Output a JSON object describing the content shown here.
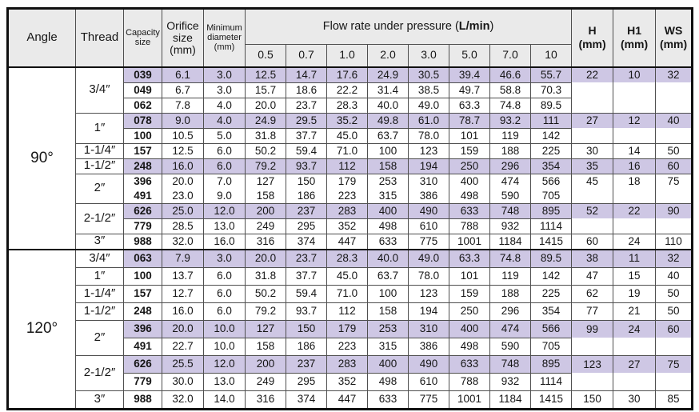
{
  "header": {
    "angle": "Angle",
    "thread": "Thread",
    "capacity": [
      "Capacity",
      "size"
    ],
    "orifice": [
      "Orifice",
      "size",
      "(mm)"
    ],
    "minimum": [
      "Minimum",
      "diameter",
      "(mm)"
    ],
    "flow_title_prefix": "Flow rate under pressure (",
    "flow_title_bold": "L/min",
    "flow_title_suffix": ")",
    "pressures": [
      "0.5",
      "0.7",
      "1.0",
      "2.0",
      "3.0",
      "5.0",
      "7.0",
      "10"
    ],
    "h": [
      "H",
      "(mm)"
    ],
    "h1": [
      "H1",
      "(mm)"
    ],
    "ws": [
      "WS",
      "(mm)"
    ]
  },
  "colors": {
    "highlight_row": "#cec7e4",
    "header_bg": "#eaeaea",
    "grid_line": "#4f4f4f",
    "frame_line": "#101010"
  },
  "sections": [
    {
      "angle": "90°",
      "groups": [
        {
          "thread": "3/4″",
          "rows": [
            {
              "capacity": "039",
              "orifice": "6.1",
              "min_dia": "3.0",
              "flow": [
                "12.5",
                "14.7",
                "17.6",
                "24.9",
                "30.5",
                "39.4",
                "46.6",
                "55.7"
              ],
              "h": "22",
              "h1": "10",
              "ws": "32",
              "highlight": true
            },
            {
              "capacity": "049",
              "orifice": "6.7",
              "min_dia": "3.0",
              "flow": [
                "15.7",
                "18.6",
                "22.2",
                "31.4",
                "38.5",
                "49.7",
                "58.8",
                "70.3"
              ],
              "h": "",
              "h1": "",
              "ws": ""
            },
            {
              "capacity": "062",
              "orifice": "7.8",
              "min_dia": "4.0",
              "flow": [
                "20.0",
                "23.7",
                "28.3",
                "40.0",
                "49.0",
                "63.3",
                "74.8",
                "89.5"
              ],
              "h": "",
              "h1": "",
              "ws": ""
            }
          ]
        },
        {
          "thread": "1″",
          "rows": [
            {
              "capacity": "078",
              "orifice": "9.0",
              "min_dia": "4.0",
              "flow": [
                "24.9",
                "29.5",
                "35.2",
                "49.8",
                "61.0",
                "78.7",
                "93.2",
                "111"
              ],
              "h": "27",
              "h1": "12",
              "ws": "40",
              "highlight": true
            },
            {
              "capacity": "100",
              "orifice": "10.5",
              "min_dia": "5.0",
              "flow": [
                "31.8",
                "37.7",
                "45.0",
                "63.7",
                "78.0",
                "101",
                "119",
                "142"
              ],
              "h": "",
              "h1": "",
              "ws": ""
            }
          ]
        },
        {
          "thread": "1-1/4″",
          "rows": [
            {
              "capacity": "157",
              "orifice": "12.5",
              "min_dia": "6.0",
              "flow": [
                "50.2",
                "59.4",
                "71.0",
                "100",
                "123",
                "159",
                "188",
                "225"
              ],
              "h": "30",
              "h1": "14",
              "ws": "50"
            }
          ]
        },
        {
          "thread": "1-1/2″",
          "rows": [
            {
              "capacity": "248",
              "orifice": "16.0",
              "min_dia": "6.0",
              "flow": [
                "79.2",
                "93.7",
                "112",
                "158",
                "194",
                "250",
                "296",
                "354"
              ],
              "h": "35",
              "h1": "16",
              "ws": "60",
              "highlight": true
            }
          ]
        },
        {
          "thread": "2″",
          "rows": [
            {
              "capacity": "396",
              "orifice": "20.0",
              "min_dia": "7.0",
              "flow": [
                "127",
                "150",
                "179",
                "253",
                "310",
                "400",
                "474",
                "566"
              ],
              "h": "45",
              "h1": "18",
              "ws": "75"
            },
            {
              "capacity": "491",
              "orifice": "23.0",
              "min_dia": "9.0",
              "flow": [
                "158",
                "186",
                "223",
                "315",
                "386",
                "498",
                "590",
                "705"
              ],
              "h": "",
              "h1": "",
              "ws": "",
              "no_top_line": true
            }
          ]
        },
        {
          "thread": "2-1/2″",
          "rows": [
            {
              "capacity": "626",
              "orifice": "25.0",
              "min_dia": "12.0",
              "flow": [
                "200",
                "237",
                "283",
                "400",
                "490",
                "633",
                "748",
                "895"
              ],
              "h": "52",
              "h1": "22",
              "ws": "90",
              "highlight": true
            },
            {
              "capacity": "779",
              "orifice": "28.5",
              "min_dia": "13.0",
              "flow": [
                "249",
                "295",
                "352",
                "498",
                "610",
                "788",
                "932",
                "1114"
              ],
              "h": "",
              "h1": "",
              "ws": ""
            }
          ]
        },
        {
          "thread": "3″",
          "rows": [
            {
              "capacity": "988",
              "orifice": "32.0",
              "min_dia": "16.0",
              "flow": [
                "316",
                "374",
                "447",
                "633",
                "775",
                "1001",
                "1184",
                "1415"
              ],
              "h": "60",
              "h1": "24",
              "ws": "110"
            }
          ]
        }
      ]
    },
    {
      "angle": "120°",
      "groups": [
        {
          "thread": "3/4″",
          "rows": [
            {
              "capacity": "063",
              "orifice": "7.9",
              "min_dia": "3.0",
              "flow": [
                "20.0",
                "23.7",
                "28.3",
                "40.0",
                "49.0",
                "63.3",
                "74.8",
                "89.5"
              ],
              "h": "38",
              "h1": "11",
              "ws": "32",
              "highlight": true
            }
          ]
        },
        {
          "thread": "1″",
          "rows": [
            {
              "capacity": "100",
              "orifice": "13.7",
              "min_dia": "6.0",
              "flow": [
                "31.8",
                "37.7",
                "45.0",
                "63.7",
                "78.0",
                "101",
                "119",
                "142"
              ],
              "h": "47",
              "h1": "15",
              "ws": "40"
            }
          ]
        },
        {
          "thread": "1-1/4″",
          "rows": [
            {
              "capacity": "157",
              "orifice": "12.7",
              "min_dia": "6.0",
              "flow": [
                "50.2",
                "59.4",
                "71.0",
                "100",
                "123",
                "159",
                "188",
                "225"
              ],
              "h": "62",
              "h1": "19",
              "ws": "50"
            }
          ]
        },
        {
          "thread": "1-1/2″",
          "rows": [
            {
              "capacity": "248",
              "orifice": "16.0",
              "min_dia": "6.0",
              "flow": [
                "79.2",
                "93.7",
                "112",
                "158",
                "194",
                "250",
                "296",
                "354"
              ],
              "h": "77",
              "h1": "21",
              "ws": "50"
            }
          ]
        },
        {
          "thread": "2″",
          "rows": [
            {
              "capacity": "396",
              "orifice": "20.0",
              "min_dia": "10.0",
              "flow": [
                "127",
                "150",
                "179",
                "253",
                "310",
                "400",
                "474",
                "566"
              ],
              "h": "99",
              "h1": "24",
              "ws": "60",
              "highlight": true
            },
            {
              "capacity": "491",
              "orifice": "22.7",
              "min_dia": "10.0",
              "flow": [
                "158",
                "186",
                "223",
                "315",
                "386",
                "498",
                "590",
                "705"
              ],
              "h": "",
              "h1": "",
              "ws": ""
            }
          ]
        },
        {
          "thread": "2-1/2″",
          "rows": [
            {
              "capacity": "626",
              "orifice": "25.5",
              "min_dia": "12.0",
              "flow": [
                "200",
                "237",
                "283",
                "400",
                "490",
                "633",
                "748",
                "895"
              ],
              "h": "123",
              "h1": "27",
              "ws": "75",
              "highlight": true
            },
            {
              "capacity": "779",
              "orifice": "30.0",
              "min_dia": "13.0",
              "flow": [
                "249",
                "295",
                "352",
                "498",
                "610",
                "788",
                "932",
                "1114"
              ],
              "h": "",
              "h1": "",
              "ws": ""
            }
          ]
        },
        {
          "thread": "3″",
          "rows": [
            {
              "capacity": "988",
              "orifice": "32.0",
              "min_dia": "14.0",
              "flow": [
                "316",
                "374",
                "447",
                "633",
                "775",
                "1001",
                "1184",
                "1415"
              ],
              "h": "150",
              "h1": "30",
              "ws": "85"
            }
          ]
        }
      ]
    }
  ]
}
